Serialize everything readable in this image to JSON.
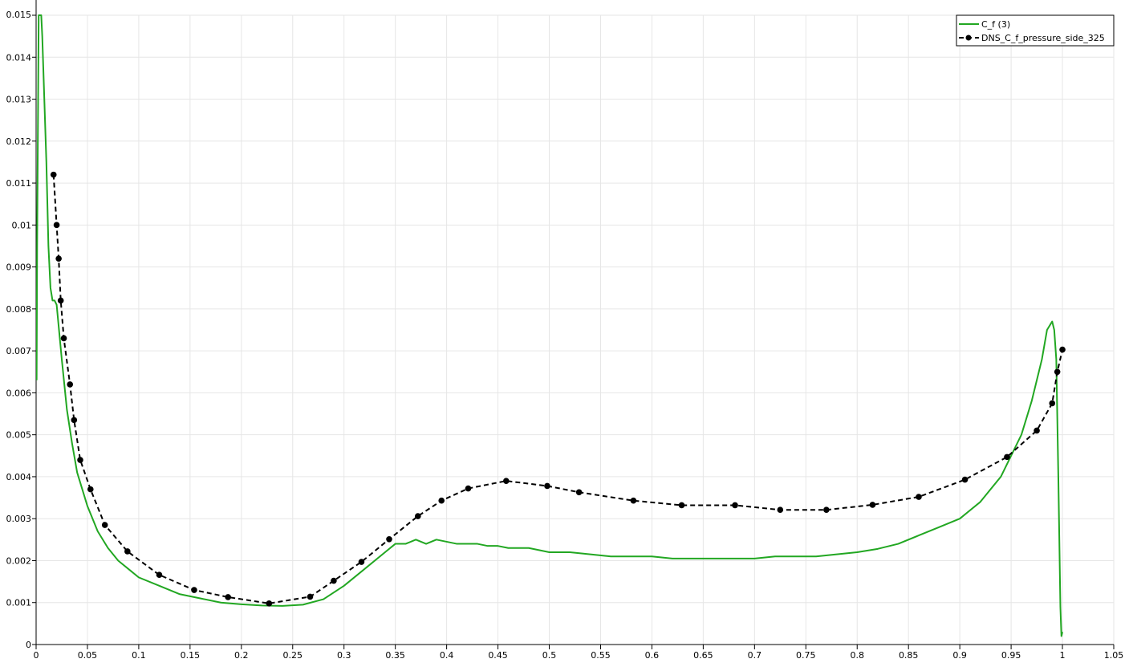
{
  "chart_data": {
    "type": "line",
    "title": "",
    "xlabel": "",
    "ylabel": "",
    "xlim": [
      0,
      1.05
    ],
    "ylim": [
      0,
      0.015
    ],
    "x_ticks": [
      0,
      0.05,
      0.1,
      0.15,
      0.2,
      0.25,
      0.3,
      0.35,
      0.4,
      0.45,
      0.5,
      0.55,
      0.6,
      0.65,
      0.7,
      0.75,
      0.8,
      0.85,
      0.9,
      0.95,
      1,
      1.05
    ],
    "x_tick_labels": [
      "0",
      "0.05",
      "0.1",
      "0.15",
      "0.2",
      "0.25",
      "0.3",
      "0.35",
      "0.4",
      "0.45",
      "0.5",
      "0.55",
      "0.6",
      "0.65",
      "0.7",
      "0.75",
      "0.8",
      "0.85",
      "0.9",
      "0.95",
      "1",
      "1.05"
    ],
    "y_ticks": [
      0,
      0.001,
      0.002,
      0.003,
      0.004,
      0.005,
      0.006,
      0.007,
      0.008,
      0.009,
      0.01,
      0.011,
      0.012,
      0.013,
      0.014,
      0.015
    ],
    "y_tick_labels": [
      "0",
      "0.001",
      "0.002",
      "0.003",
      "0.004",
      "0.005",
      "0.006",
      "0.007",
      "0.008",
      "0.009",
      "0.01",
      "0.011",
      "0.012",
      "0.013",
      "0.014",
      "0.015"
    ],
    "grid": true,
    "legend_position": "top-right",
    "series": [
      {
        "name": "C_f (3)",
        "color": "#22a722",
        "style": "solid",
        "markers": false,
        "x": [
          0.0005,
          0.001,
          0.0025,
          0.005,
          0.006,
          0.008,
          0.01,
          0.012,
          0.014,
          0.016,
          0.018,
          0.02,
          0.025,
          0.03,
          0.035,
          0.04,
          0.05,
          0.06,
          0.07,
          0.08,
          0.09,
          0.1,
          0.12,
          0.14,
          0.16,
          0.18,
          0.2,
          0.22,
          0.24,
          0.26,
          0.28,
          0.3,
          0.32,
          0.34,
          0.35,
          0.36,
          0.37,
          0.38,
          0.39,
          0.4,
          0.41,
          0.42,
          0.43,
          0.44,
          0.45,
          0.46,
          0.48,
          0.5,
          0.52,
          0.54,
          0.56,
          0.58,
          0.6,
          0.62,
          0.64,
          0.66,
          0.68,
          0.7,
          0.72,
          0.74,
          0.76,
          0.78,
          0.8,
          0.82,
          0.84,
          0.86,
          0.88,
          0.9,
          0.92,
          0.94,
          0.96,
          0.97,
          0.98,
          0.985,
          0.99,
          0.992,
          0.994,
          0.996,
          0.998,
          0.999,
          1.0
        ],
        "y": [
          0.0063,
          0.0095,
          0.015,
          0.015,
          0.0145,
          0.013,
          0.0115,
          0.0095,
          0.0085,
          0.0082,
          0.0082,
          0.0081,
          0.0068,
          0.0056,
          0.0048,
          0.0041,
          0.0033,
          0.0027,
          0.0023,
          0.002,
          0.0018,
          0.0016,
          0.0014,
          0.0012,
          0.0011,
          0.001,
          0.00096,
          0.00093,
          0.00092,
          0.00095,
          0.00108,
          0.0014,
          0.0018,
          0.0022,
          0.0024,
          0.0024,
          0.0025,
          0.0024,
          0.0025,
          0.00245,
          0.0024,
          0.0024,
          0.0024,
          0.00235,
          0.00235,
          0.0023,
          0.0023,
          0.0022,
          0.0022,
          0.00215,
          0.0021,
          0.0021,
          0.0021,
          0.00205,
          0.00205,
          0.00205,
          0.00205,
          0.00205,
          0.0021,
          0.0021,
          0.0021,
          0.00215,
          0.0022,
          0.00228,
          0.0024,
          0.0026,
          0.0028,
          0.003,
          0.0034,
          0.004,
          0.005,
          0.0058,
          0.0068,
          0.0075,
          0.0077,
          0.0075,
          0.0068,
          0.004,
          0.0009,
          0.0002,
          0.0003
        ]
      },
      {
        "name": "DNS_C_f_pressure_side_325",
        "color": "#000000",
        "style": "dashed",
        "markers": true,
        "x": [
          0.017,
          0.02,
          0.022,
          0.024,
          0.027,
          0.033,
          0.037,
          0.043,
          0.053,
          0.067,
          0.089,
          0.12,
          0.154,
          0.187,
          0.227,
          0.267,
          0.29,
          0.317,
          0.344,
          0.372,
          0.395,
          0.421,
          0.458,
          0.498,
          0.529,
          0.582,
          0.629,
          0.681,
          0.725,
          0.77,
          0.815,
          0.86,
          0.905,
          0.946,
          0.975,
          0.99,
          0.995,
          1.0
        ],
        "y": [
          0.0112,
          0.01,
          0.0092,
          0.0082,
          0.0073,
          0.0062,
          0.00535,
          0.0044,
          0.0037,
          0.00285,
          0.00222,
          0.00166,
          0.0013,
          0.00113,
          0.00098,
          0.00114,
          0.00152,
          0.00197,
          0.00251,
          0.00306,
          0.00343,
          0.00372,
          0.0039,
          0.00378,
          0.00363,
          0.00343,
          0.00332,
          0.00332,
          0.00321,
          0.00321,
          0.00333,
          0.00352,
          0.00393,
          0.00447,
          0.0051,
          0.00575,
          0.0065,
          0.00703
        ]
      }
    ]
  }
}
